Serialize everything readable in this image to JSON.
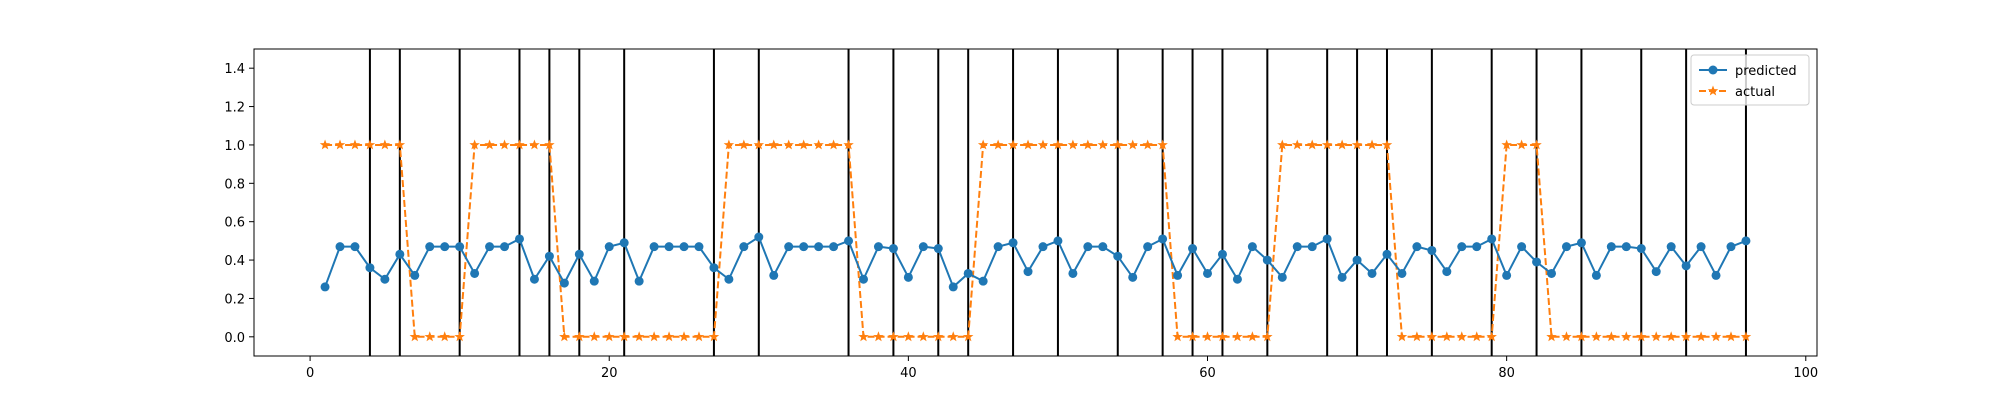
{
  "chart_data": {
    "type": "line",
    "title": "",
    "xlabel": "",
    "ylabel": "",
    "xlim": [
      -3.75,
      100.75
    ],
    "ylim": [
      -0.1,
      1.5
    ],
    "xticks": [
      0,
      20,
      40,
      60,
      80,
      100
    ],
    "yticks": [
      0.0,
      0.2,
      0.4,
      0.6,
      0.8,
      1.0,
      1.2,
      1.4
    ],
    "ytick_labels": [
      "0.0",
      "0.2",
      "0.4",
      "0.6",
      "0.8",
      "1.0",
      "1.2",
      "1.4"
    ],
    "grid": false,
    "legend": "top-right",
    "vlines": [
      4,
      6,
      10,
      14,
      16,
      18,
      21,
      27,
      30,
      36,
      39,
      42,
      44,
      47,
      50,
      54,
      57,
      59,
      61,
      64,
      68,
      70,
      72,
      75,
      79,
      82,
      85,
      89,
      92,
      96
    ],
    "x": [
      1,
      2,
      3,
      4,
      5,
      6,
      7,
      8,
      9,
      10,
      11,
      12,
      13,
      14,
      15,
      16,
      17,
      18,
      19,
      20,
      21,
      22,
      23,
      24,
      25,
      26,
      27,
      28,
      29,
      30,
      31,
      32,
      33,
      34,
      35,
      36,
      37,
      38,
      39,
      40,
      41,
      42,
      43,
      44,
      45,
      46,
      47,
      48,
      49,
      50,
      51,
      52,
      53,
      54,
      55,
      56,
      57,
      58,
      59,
      60,
      61,
      62,
      63,
      64,
      65,
      66,
      67,
      68,
      69,
      70,
      71,
      72,
      73,
      74,
      75,
      76,
      77,
      78,
      79,
      80,
      81,
      82,
      83,
      84,
      85,
      86,
      87,
      88,
      89,
      90,
      91,
      92,
      93,
      94,
      95,
      96
    ],
    "series": [
      {
        "name": "predicted",
        "color": "#1f77b4",
        "marker": "circle",
        "linestyle": "solid",
        "values": [
          0.26,
          0.47,
          0.47,
          0.36,
          0.3,
          0.43,
          0.32,
          0.47,
          0.47,
          0.47,
          0.33,
          0.47,
          0.47,
          0.51,
          0.3,
          0.42,
          0.28,
          0.43,
          0.29,
          0.47,
          0.49,
          0.29,
          0.47,
          0.47,
          0.47,
          0.47,
          0.36,
          0.3,
          0.47,
          0.52,
          0.32,
          0.47,
          0.47,
          0.47,
          0.47,
          0.5,
          0.3,
          0.47,
          0.46,
          0.31,
          0.47,
          0.46,
          0.26,
          0.33,
          0.29,
          0.47,
          0.49,
          0.34,
          0.47,
          0.5,
          0.33,
          0.47,
          0.47,
          0.42,
          0.31,
          0.47,
          0.51,
          0.32,
          0.46,
          0.33,
          0.43,
          0.3,
          0.47,
          0.4,
          0.31,
          0.47,
          0.47,
          0.51,
          0.31,
          0.4,
          0.33,
          0.43,
          0.33,
          0.47,
          0.45,
          0.34,
          0.47,
          0.47,
          0.51,
          0.32,
          0.47,
          0.39,
          0.33,
          0.47,
          0.49,
          0.32,
          0.47,
          0.47,
          0.46,
          0.34,
          0.47,
          0.37,
          0.47,
          0.32,
          0.47,
          0.5
        ]
      },
      {
        "name": "actual",
        "color": "#ff7f0e",
        "marker": "star",
        "linestyle": "dashed",
        "values": [
          1,
          1,
          1,
          1,
          1,
          1,
          0,
          0,
          0,
          0,
          1,
          1,
          1,
          1,
          1,
          1,
          0,
          0,
          0,
          0,
          0,
          0,
          0,
          0,
          0,
          0,
          0,
          1,
          1,
          1,
          1,
          1,
          1,
          1,
          1,
          1,
          0,
          0,
          0,
          0,
          0,
          0,
          0,
          0,
          1,
          1,
          1,
          1,
          1,
          1,
          1,
          1,
          1,
          1,
          1,
          1,
          1,
          0,
          0,
          0,
          0,
          0,
          0,
          0,
          1,
          1,
          1,
          1,
          1,
          1,
          1,
          1,
          0,
          0,
          0,
          0,
          0,
          0,
          0,
          1,
          1,
          1,
          0,
          0,
          0,
          0,
          0,
          0,
          0,
          0,
          0,
          0,
          0,
          0,
          0,
          0
        ]
      }
    ]
  }
}
